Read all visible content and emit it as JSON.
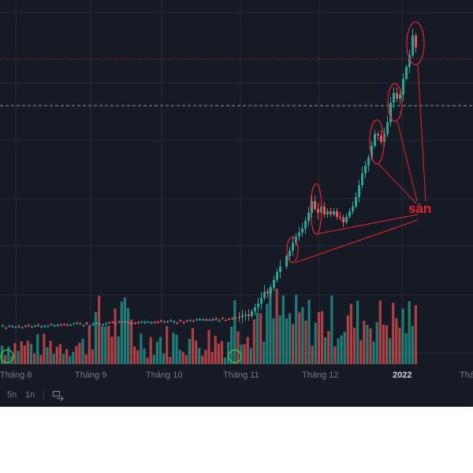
{
  "chart": {
    "x_labels": [
      "Tháng 8",
      "Tháng 9",
      "Tháng 10",
      "Tháng 11",
      "Tháng 12",
      "2022",
      "Thá"
    ],
    "annotation_text": "sàn",
    "annotation_color": "#e8262a",
    "up_color": "#26a69a",
    "down_color": "#ef5350",
    "background": "#161a25",
    "grid_color": "#252a36",
    "resistance_line_color": "#e8262a",
    "dashed_line_color": "#b2b5be"
  },
  "timeline": {
    "buttons": [
      "5n",
      "1n"
    ],
    "compare_icon": "compare-icon"
  }
}
